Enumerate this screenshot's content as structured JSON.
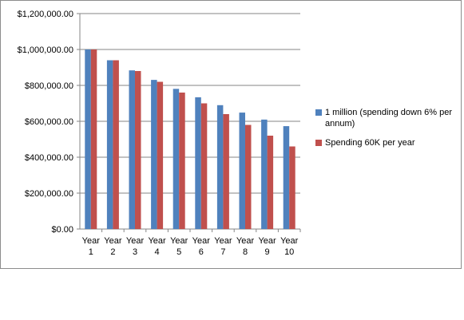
{
  "chart_data": {
    "type": "bar",
    "categories": [
      [
        "Year",
        "1"
      ],
      [
        "Year",
        "2"
      ],
      [
        "Year",
        "3"
      ],
      [
        "Year",
        "4"
      ],
      [
        "Year",
        "5"
      ],
      [
        "Year",
        "6"
      ],
      [
        "Year",
        "7"
      ],
      [
        "Year",
        "8"
      ],
      [
        "Year",
        "9"
      ],
      [
        "Year",
        "10"
      ]
    ],
    "series": [
      {
        "name": "1 million (spending down 6% per annum)",
        "color": "#4f81bd",
        "values": [
          1000000,
          940000,
          883600,
          830584,
          780749,
          733904,
          689870,
          648478,
          609569,
          572995
        ]
      },
      {
        "name": "Spending 60K per year",
        "color": "#c0504d",
        "values": [
          1000000,
          940000,
          880000,
          820000,
          760000,
          700000,
          640000,
          580000,
          520000,
          460000
        ]
      }
    ],
    "ylim": [
      0,
      1200000
    ],
    "yticks": [
      "$0.00",
      "$200,000.00",
      "$400,000.00",
      "$600,000.00",
      "$800,000.00",
      "$1,000,000.00",
      "$1,200,000.00"
    ],
    "grid": true,
    "legend": "right"
  }
}
